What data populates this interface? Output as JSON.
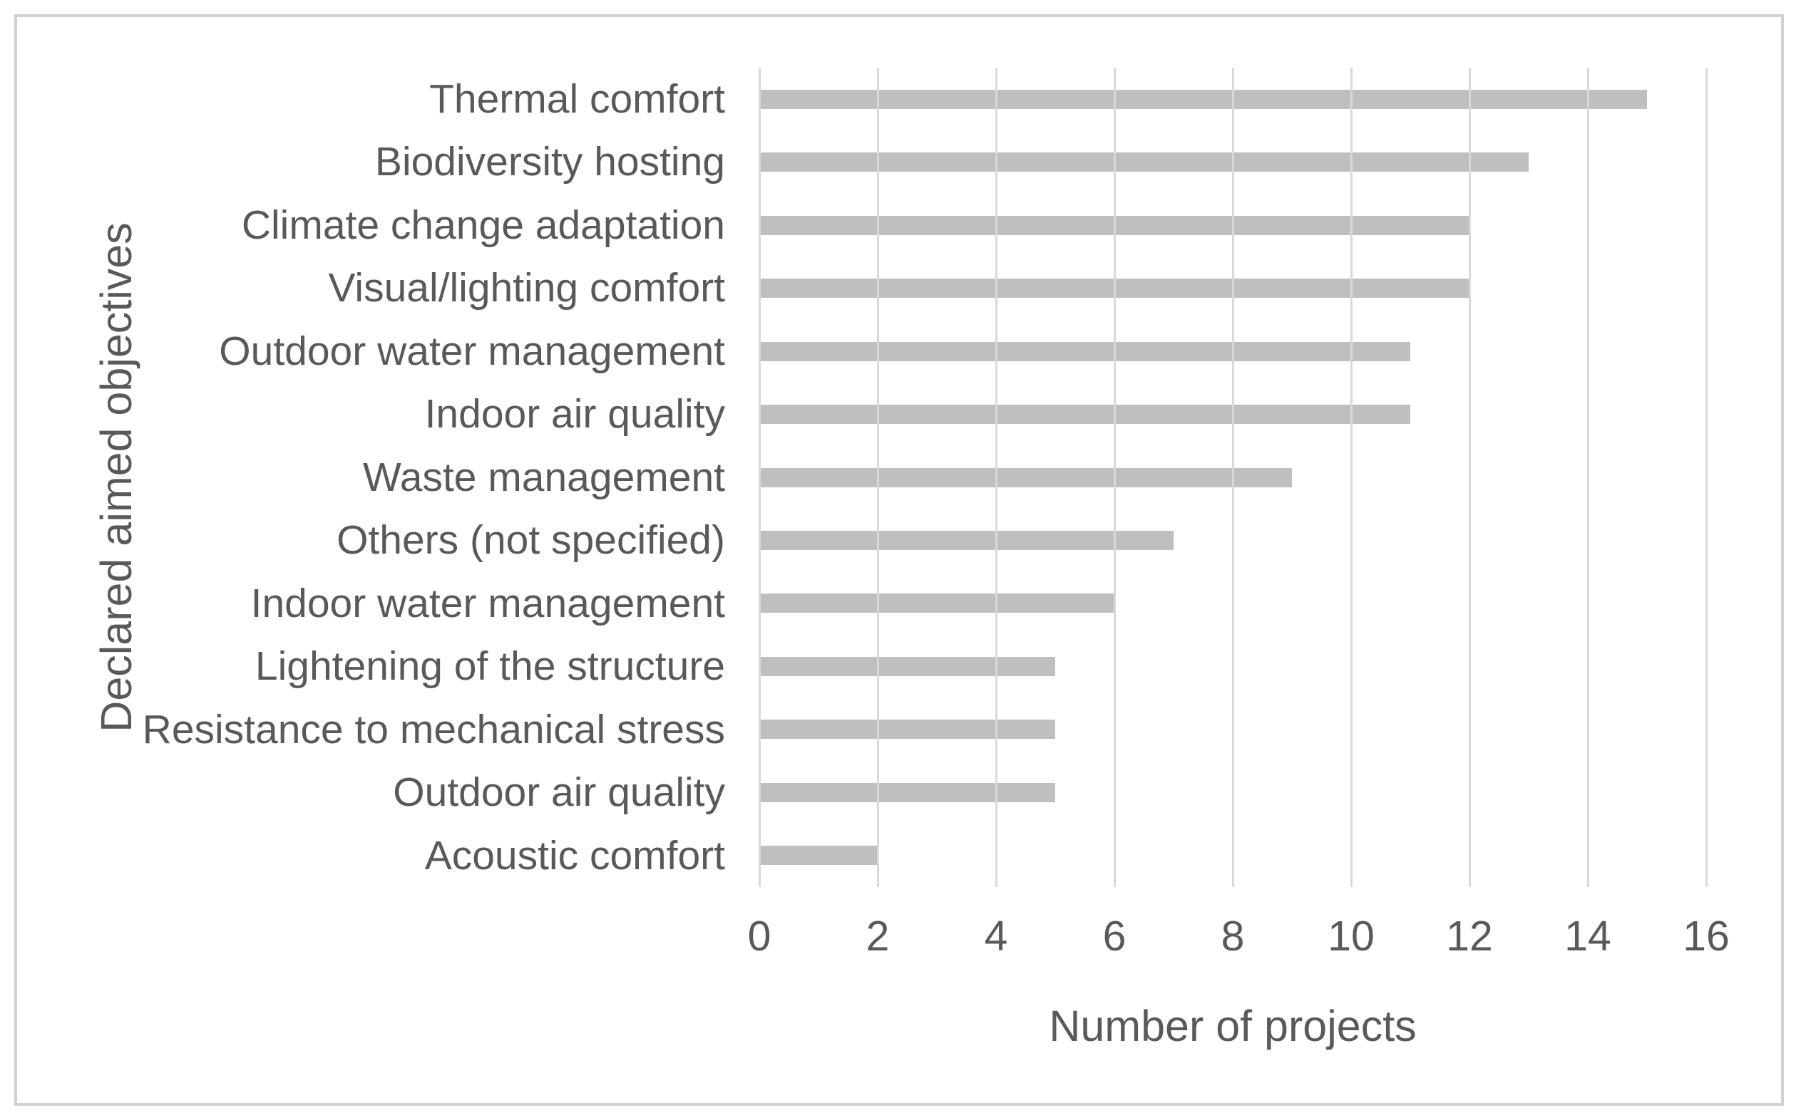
{
  "chart_data": {
    "type": "bar",
    "orientation": "horizontal",
    "title": "",
    "xlabel": "Number of projects",
    "ylabel": "Declared aimed objectives",
    "categories": [
      "Thermal comfort",
      "Biodiversity hosting",
      "Climate change adaptation",
      "Visual/lighting comfort",
      "Outdoor water management",
      "Indoor air quality",
      "Waste management",
      "Others (not specified)",
      "Indoor water management",
      "Lightening of the structure",
      "Resistance to mechanical stress",
      "Outdoor air quality",
      "Acoustic comfort"
    ],
    "values": [
      15,
      13,
      12,
      12,
      11,
      11,
      9,
      7,
      6,
      5,
      5,
      5,
      2
    ],
    "xlim": [
      0,
      16
    ],
    "xticks": [
      0,
      2,
      4,
      6,
      8,
      10,
      12,
      14,
      16
    ],
    "grid": "vertical-major-gridlines-over-bars",
    "legend": "none",
    "colors": {
      "bar": "#bfbfbf",
      "gridline": "#d9d9d9",
      "text": "#595959",
      "frame_border": "#d1d1d1",
      "background": "#ffffff"
    }
  }
}
